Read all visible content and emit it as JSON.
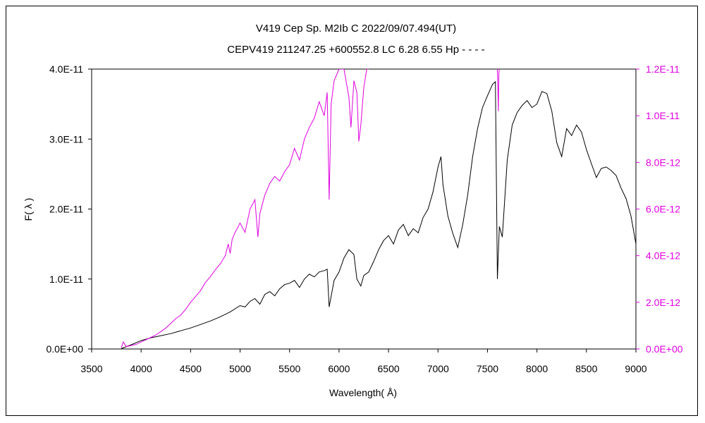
{
  "chart_data": {
    "type": "line",
    "title": "V419 Cep    Sp. M2Ib C    2022/09/07.494(UT)",
    "subtitle": "CEPV419 211247.25 +600552.8 LC 6.28 6.55 Hp - - - -",
    "xlabel": "Wavelength( Å)",
    "ylabel": "F( λ )",
    "xlim": [
      3500,
      9000
    ],
    "ylim": [
      0,
      4e-11
    ],
    "ylim_right": [
      0,
      1.2e-11
    ],
    "x_ticks": [
      "3500",
      "4000",
      "4500",
      "5000",
      "5500",
      "6000",
      "6500",
      "7000",
      "7500",
      "8000",
      "8500",
      "9000"
    ],
    "y_ticks": [
      "0.0E+00",
      "1.0E-11",
      "2.0E-11",
      "3.0E-11",
      "4.0E-11"
    ],
    "y_ticks_right": [
      "0.0E+00",
      "2.0E-12",
      "4.0E-12",
      "6.0E-12",
      "8.0E-12",
      "1.0E-11",
      "1.2E-11"
    ],
    "grid": false,
    "series": [
      {
        "color": "#000000",
        "axis": "left",
        "x": [
          3800,
          3900,
          4000,
          4100,
          4200,
          4300,
          4400,
          4500,
          4600,
          4700,
          4800,
          4900,
          5000,
          5050,
          5100,
          5150,
          5200,
          5250,
          5300,
          5350,
          5400,
          5450,
          5500,
          5550,
          5600,
          5650,
          5700,
          5750,
          5800,
          5850,
          5880,
          5900,
          5950,
          6000,
          6050,
          6100,
          6150,
          6180,
          6220,
          6250,
          6300,
          6350,
          6400,
          6450,
          6500,
          6550,
          6600,
          6650,
          6700,
          6750,
          6800,
          6850,
          6900,
          6950,
          7000,
          7030,
          7050,
          7100,
          7150,
          7200,
          7250,
          7300,
          7350,
          7400,
          7450,
          7500,
          7550,
          7580,
          7600,
          7620,
          7650,
          7700,
          7750,
          7800,
          7850,
          7900,
          7950,
          8000,
          8050,
          8100,
          8150,
          8200,
          8250,
          8300,
          8350,
          8400,
          8450,
          8500,
          8550,
          8600,
          8650,
          8700,
          8750,
          8800,
          8850,
          8900,
          8950,
          9000
        ],
        "y": [
          5e-14,
          6e-13,
          1.2e-12,
          1.6e-12,
          1.9e-12,
          2.2e-12,
          2.6e-12,
          3e-12,
          3.5e-12,
          4e-12,
          4.6e-12,
          5.3e-12,
          6.2e-12,
          6e-12,
          6.8e-12,
          7.2e-12,
          6.4e-12,
          7.8e-12,
          8.2e-12,
          7.6e-12,
          8.6e-12,
          9.2e-12,
          9.4e-12,
          9.8e-12,
          8.8e-12,
          1e-11,
          1.07e-11,
          1.03e-11,
          1.1e-11,
          1.12e-11,
          1.14e-11,
          6e-12,
          9.8e-12,
          1.1e-11,
          1.3e-11,
          1.42e-11,
          1.35e-11,
          1e-11,
          9e-12,
          1.05e-11,
          1.1e-11,
          1.25e-11,
          1.42e-11,
          1.55e-11,
          1.62e-11,
          1.5e-11,
          1.7e-11,
          1.78e-11,
          1.62e-11,
          1.72e-11,
          1.66e-11,
          1.88e-11,
          2e-11,
          2.25e-11,
          2.6e-11,
          2.75e-11,
          2.35e-11,
          1.9e-11,
          1.65e-11,
          1.45e-11,
          1.78e-11,
          2.2e-11,
          2.75e-11,
          3.15e-11,
          3.45e-11,
          3.62e-11,
          3.78e-11,
          3.82e-11,
          1e-11,
          1.75e-11,
          1.6e-11,
          2.7e-11,
          3.2e-11,
          3.38e-11,
          3.48e-11,
          3.55e-11,
          3.45e-11,
          3.5e-11,
          3.68e-11,
          3.65e-11,
          3.4e-11,
          2.95e-11,
          2.75e-11,
          3.15e-11,
          3.05e-11,
          3.2e-11,
          3.1e-11,
          2.85e-11,
          2.65e-11,
          2.45e-11,
          2.58e-11,
          2.6e-11,
          2.55e-11,
          2.48e-11,
          2.3e-11,
          2.15e-11,
          1.9e-11,
          1.5e-11
        ]
      },
      {
        "color": "#e000e0",
        "axis": "right",
        "x": [
          3800,
          3820,
          3850,
          3900,
          3950,
          4000,
          4050,
          4100,
          4150,
          4200,
          4250,
          4300,
          4350,
          4400,
          4450,
          4500,
          4550,
          4600,
          4650,
          4700,
          4750,
          4800,
          4850,
          4880,
          4900,
          4920,
          4950,
          5000,
          5050,
          5100,
          5150,
          5180,
          5200,
          5250,
          5300,
          5350,
          5400,
          5450,
          5500,
          5550,
          5600,
          5650,
          5700,
          5750,
          5800,
          5850,
          5880,
          5900,
          5920,
          5950,
          6000,
          6020,
          6050,
          6100,
          6120,
          6150,
          6180,
          6200,
          6220,
          6250,
          6280,
          6300
        ],
        "y": [
          5e-14,
          3e-13,
          1e-13,
          1.5e-13,
          2e-13,
          3e-13,
          4e-13,
          5e-13,
          6e-13,
          7.5e-13,
          9e-13,
          1.1e-12,
          1.3e-12,
          1.45e-12,
          1.7e-12,
          2e-12,
          2.25e-12,
          2.5e-12,
          2.85e-12,
          3.1e-12,
          3.4e-12,
          3.65e-12,
          4e-12,
          4.5e-12,
          4.1e-12,
          4.7e-12,
          5e-12,
          5.4e-12,
          5e-12,
          6e-12,
          6.4e-12,
          4.8e-12,
          5.8e-12,
          6.6e-12,
          7.1e-12,
          7.4e-12,
          7.2e-12,
          7.6e-12,
          7.9e-12,
          8.6e-12,
          8.1e-12,
          9e-12,
          9.5e-12,
          9.9e-12,
          1.06e-11,
          1e-11,
          1.1e-11,
          6.4e-12,
          1.05e-11,
          1.15e-11,
          1.2e-11,
          1.2e-11,
          1.2e-11,
          1.08e-11,
          9.5e-12,
          1.15e-11,
          1.1e-11,
          8.9e-12,
          9.6e-12,
          1.12e-11,
          1.2e-11,
          1.2e-11
        ]
      },
      {
        "color": "#e000e0",
        "axis": "right",
        "x": [
          7600,
          7605,
          7610,
          7615,
          7620
        ],
        "y": [
          1.2e-11,
          1.12e-11,
          1.02e-11,
          1.18e-11,
          1.2e-11
        ]
      }
    ]
  }
}
